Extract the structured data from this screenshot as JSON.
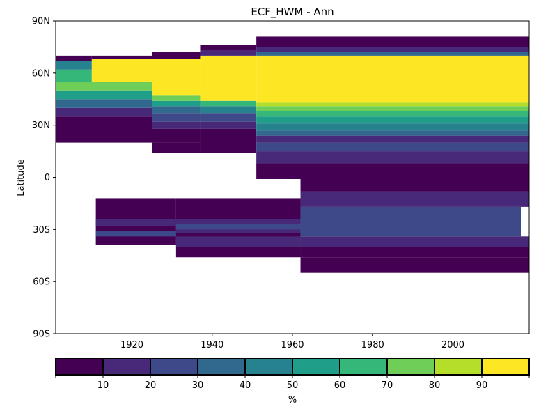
{
  "chart_data": {
    "type": "heatmap",
    "title": "ECF_HWM - Ann",
    "xlabel": "",
    "ylabel": "Latitude",
    "xlim": [
      1901,
      2019
    ],
    "ylim": [
      -90,
      90
    ],
    "x_ticks": [
      1920,
      1940,
      1960,
      1980,
      2000
    ],
    "x_tick_labels": [
      "1920",
      "1940",
      "1960",
      "1980",
      "2000"
    ],
    "y_ticks": [
      -90,
      -60,
      -30,
      0,
      30,
      60,
      90
    ],
    "y_tick_labels": [
      "90S",
      "60S",
      "30S",
      "0",
      "30N",
      "60N",
      "90N"
    ],
    "colorbar": {
      "label": "%",
      "boundaries": [
        0,
        10,
        20,
        30,
        40,
        50,
        60,
        70,
        80,
        90,
        100
      ],
      "tick_values": [
        10,
        20,
        30,
        40,
        50,
        60,
        70,
        80,
        90
      ],
      "tick_labels": [
        "10",
        "20",
        "30",
        "40",
        "50",
        "60",
        "70",
        "80",
        "90"
      ],
      "colors": [
        "#440154",
        "#482878",
        "#3e4989",
        "#31688e",
        "#26828e",
        "#1f9e89",
        "#35b779",
        "#6ece58",
        "#b5de2b",
        "#fde725"
      ]
    },
    "regions": [
      {
        "x": [
          1901,
          1925
        ],
        "lat": [
          20,
          25
        ],
        "value": 5
      },
      {
        "x": [
          1901,
          1925
        ],
        "lat": [
          25,
          35
        ],
        "value": 5
      },
      {
        "x": [
          1901,
          1925
        ],
        "lat": [
          35,
          40
        ],
        "value": 15
      },
      {
        "x": [
          1901,
          1925
        ],
        "lat": [
          40,
          45
        ],
        "value": 35
      },
      {
        "x": [
          1901,
          1925
        ],
        "lat": [
          45,
          50
        ],
        "value": 55
      },
      {
        "x": [
          1901,
          1925
        ],
        "lat": [
          50,
          55
        ],
        "value": 70
      },
      {
        "x": [
          1901,
          1910
        ],
        "lat": [
          55,
          62
        ],
        "value": 62
      },
      {
        "x": [
          1901,
          1910
        ],
        "lat": [
          62,
          67
        ],
        "value": 45
      },
      {
        "x": [
          1901,
          1910
        ],
        "lat": [
          67,
          70
        ],
        "value": 5
      },
      {
        "x": [
          1910,
          1925
        ],
        "lat": [
          55,
          68
        ],
        "value": 95
      },
      {
        "x": [
          1910,
          1925
        ],
        "lat": [
          68,
          70
        ],
        "value": 5
      },
      {
        "x": [
          1925,
          1937
        ],
        "lat": [
          14,
          20
        ],
        "value": 5
      },
      {
        "x": [
          1925,
          1937
        ],
        "lat": [
          20,
          28
        ],
        "value": 5
      },
      {
        "x": [
          1925,
          1937
        ],
        "lat": [
          28,
          32
        ],
        "value": 15
      },
      {
        "x": [
          1925,
          1937
        ],
        "lat": [
          32,
          37
        ],
        "value": 25
      },
      {
        "x": [
          1925,
          1937
        ],
        "lat": [
          37,
          41
        ],
        "value": 35
      },
      {
        "x": [
          1925,
          1937
        ],
        "lat": [
          41,
          44
        ],
        "value": 55
      },
      {
        "x": [
          1925,
          1937
        ],
        "lat": [
          44,
          47
        ],
        "value": 75
      },
      {
        "x": [
          1925,
          1937
        ],
        "lat": [
          47,
          68
        ],
        "value": 95
      },
      {
        "x": [
          1925,
          1937
        ],
        "lat": [
          68,
          72
        ],
        "value": 5
      },
      {
        "x": [
          1937,
          1951
        ],
        "lat": [
          14,
          28
        ],
        "value": 5
      },
      {
        "x": [
          1937,
          1951
        ],
        "lat": [
          28,
          32
        ],
        "value": 15
      },
      {
        "x": [
          1937,
          1951
        ],
        "lat": [
          32,
          37
        ],
        "value": 25
      },
      {
        "x": [
          1937,
          1951
        ],
        "lat": [
          37,
          41
        ],
        "value": 45
      },
      {
        "x": [
          1937,
          1951
        ],
        "lat": [
          41,
          44
        ],
        "value": 65
      },
      {
        "x": [
          1937,
          1951
        ],
        "lat": [
          44,
          70
        ],
        "value": 95
      },
      {
        "x": [
          1937,
          1951
        ],
        "lat": [
          70,
          73
        ],
        "value": 15
      },
      {
        "x": [
          1937,
          1951
        ],
        "lat": [
          73,
          76
        ],
        "value": 5
      },
      {
        "x": [
          1951,
          2019
        ],
        "lat": [
          -1,
          8
        ],
        "value": 5
      },
      {
        "x": [
          1951,
          2019
        ],
        "lat": [
          8,
          15
        ],
        "value": 15
      },
      {
        "x": [
          1951,
          2019
        ],
        "lat": [
          15,
          20
        ],
        "value": 25
      },
      {
        "x": [
          1951,
          2019
        ],
        "lat": [
          20,
          24
        ],
        "value": 15
      },
      {
        "x": [
          1951,
          2019
        ],
        "lat": [
          24,
          27
        ],
        "value": 35
      },
      {
        "x": [
          1951,
          2019
        ],
        "lat": [
          27,
          31
        ],
        "value": 45
      },
      {
        "x": [
          1951,
          2019
        ],
        "lat": [
          31,
          35
        ],
        "value": 55
      },
      {
        "x": [
          1951,
          2019
        ],
        "lat": [
          35,
          38
        ],
        "value": 65
      },
      {
        "x": [
          1951,
          2019
        ],
        "lat": [
          38,
          41
        ],
        "value": 75
      },
      {
        "x": [
          1951,
          2019
        ],
        "lat": [
          41,
          43
        ],
        "value": 85
      },
      {
        "x": [
          1951,
          2019
        ],
        "lat": [
          43,
          70
        ],
        "value": 95
      },
      {
        "x": [
          1951,
          2019
        ],
        "lat": [
          70,
          72
        ],
        "value": 35
      },
      {
        "x": [
          1951,
          2019
        ],
        "lat": [
          72,
          75
        ],
        "value": 15
      },
      {
        "x": [
          1951,
          2019
        ],
        "lat": [
          75,
          81
        ],
        "value": 5
      },
      {
        "x": [
          1911,
          1931
        ],
        "lat": [
          -39,
          -12
        ],
        "value": 5
      },
      {
        "x": [
          1911,
          1931
        ],
        "lat": [
          -28,
          -24
        ],
        "value": 15
      },
      {
        "x": [
          1911,
          1931
        ],
        "lat": [
          -34,
          -31
        ],
        "value": 25
      },
      {
        "x": [
          1931,
          1962
        ],
        "lat": [
          -46,
          -12
        ],
        "value": 5
      },
      {
        "x": [
          1931,
          1962
        ],
        "lat": [
          -40,
          -34
        ],
        "value": 15
      },
      {
        "x": [
          1931,
          1962
        ],
        "lat": [
          -32,
          -24
        ],
        "value": 15
      },
      {
        "x": [
          1931,
          1962
        ],
        "lat": [
          -30,
          -27
        ],
        "value": 25
      },
      {
        "x": [
          1962,
          2019
        ],
        "lat": [
          -55,
          -46
        ],
        "value": 5
      },
      {
        "x": [
          1962,
          2019
        ],
        "lat": [
          -46,
          -40
        ],
        "value": 5
      },
      {
        "x": [
          1962,
          2019
        ],
        "lat": [
          -40,
          -34
        ],
        "value": 15
      },
      {
        "x": [
          1962,
          2017
        ],
        "lat": [
          -34,
          -17
        ],
        "value": 25
      },
      {
        "x": [
          1962,
          2019
        ],
        "lat": [
          -17,
          -8
        ],
        "value": 15
      },
      {
        "x": [
          1962,
          2019
        ],
        "lat": [
          -8,
          3
        ],
        "value": 5
      }
    ]
  }
}
